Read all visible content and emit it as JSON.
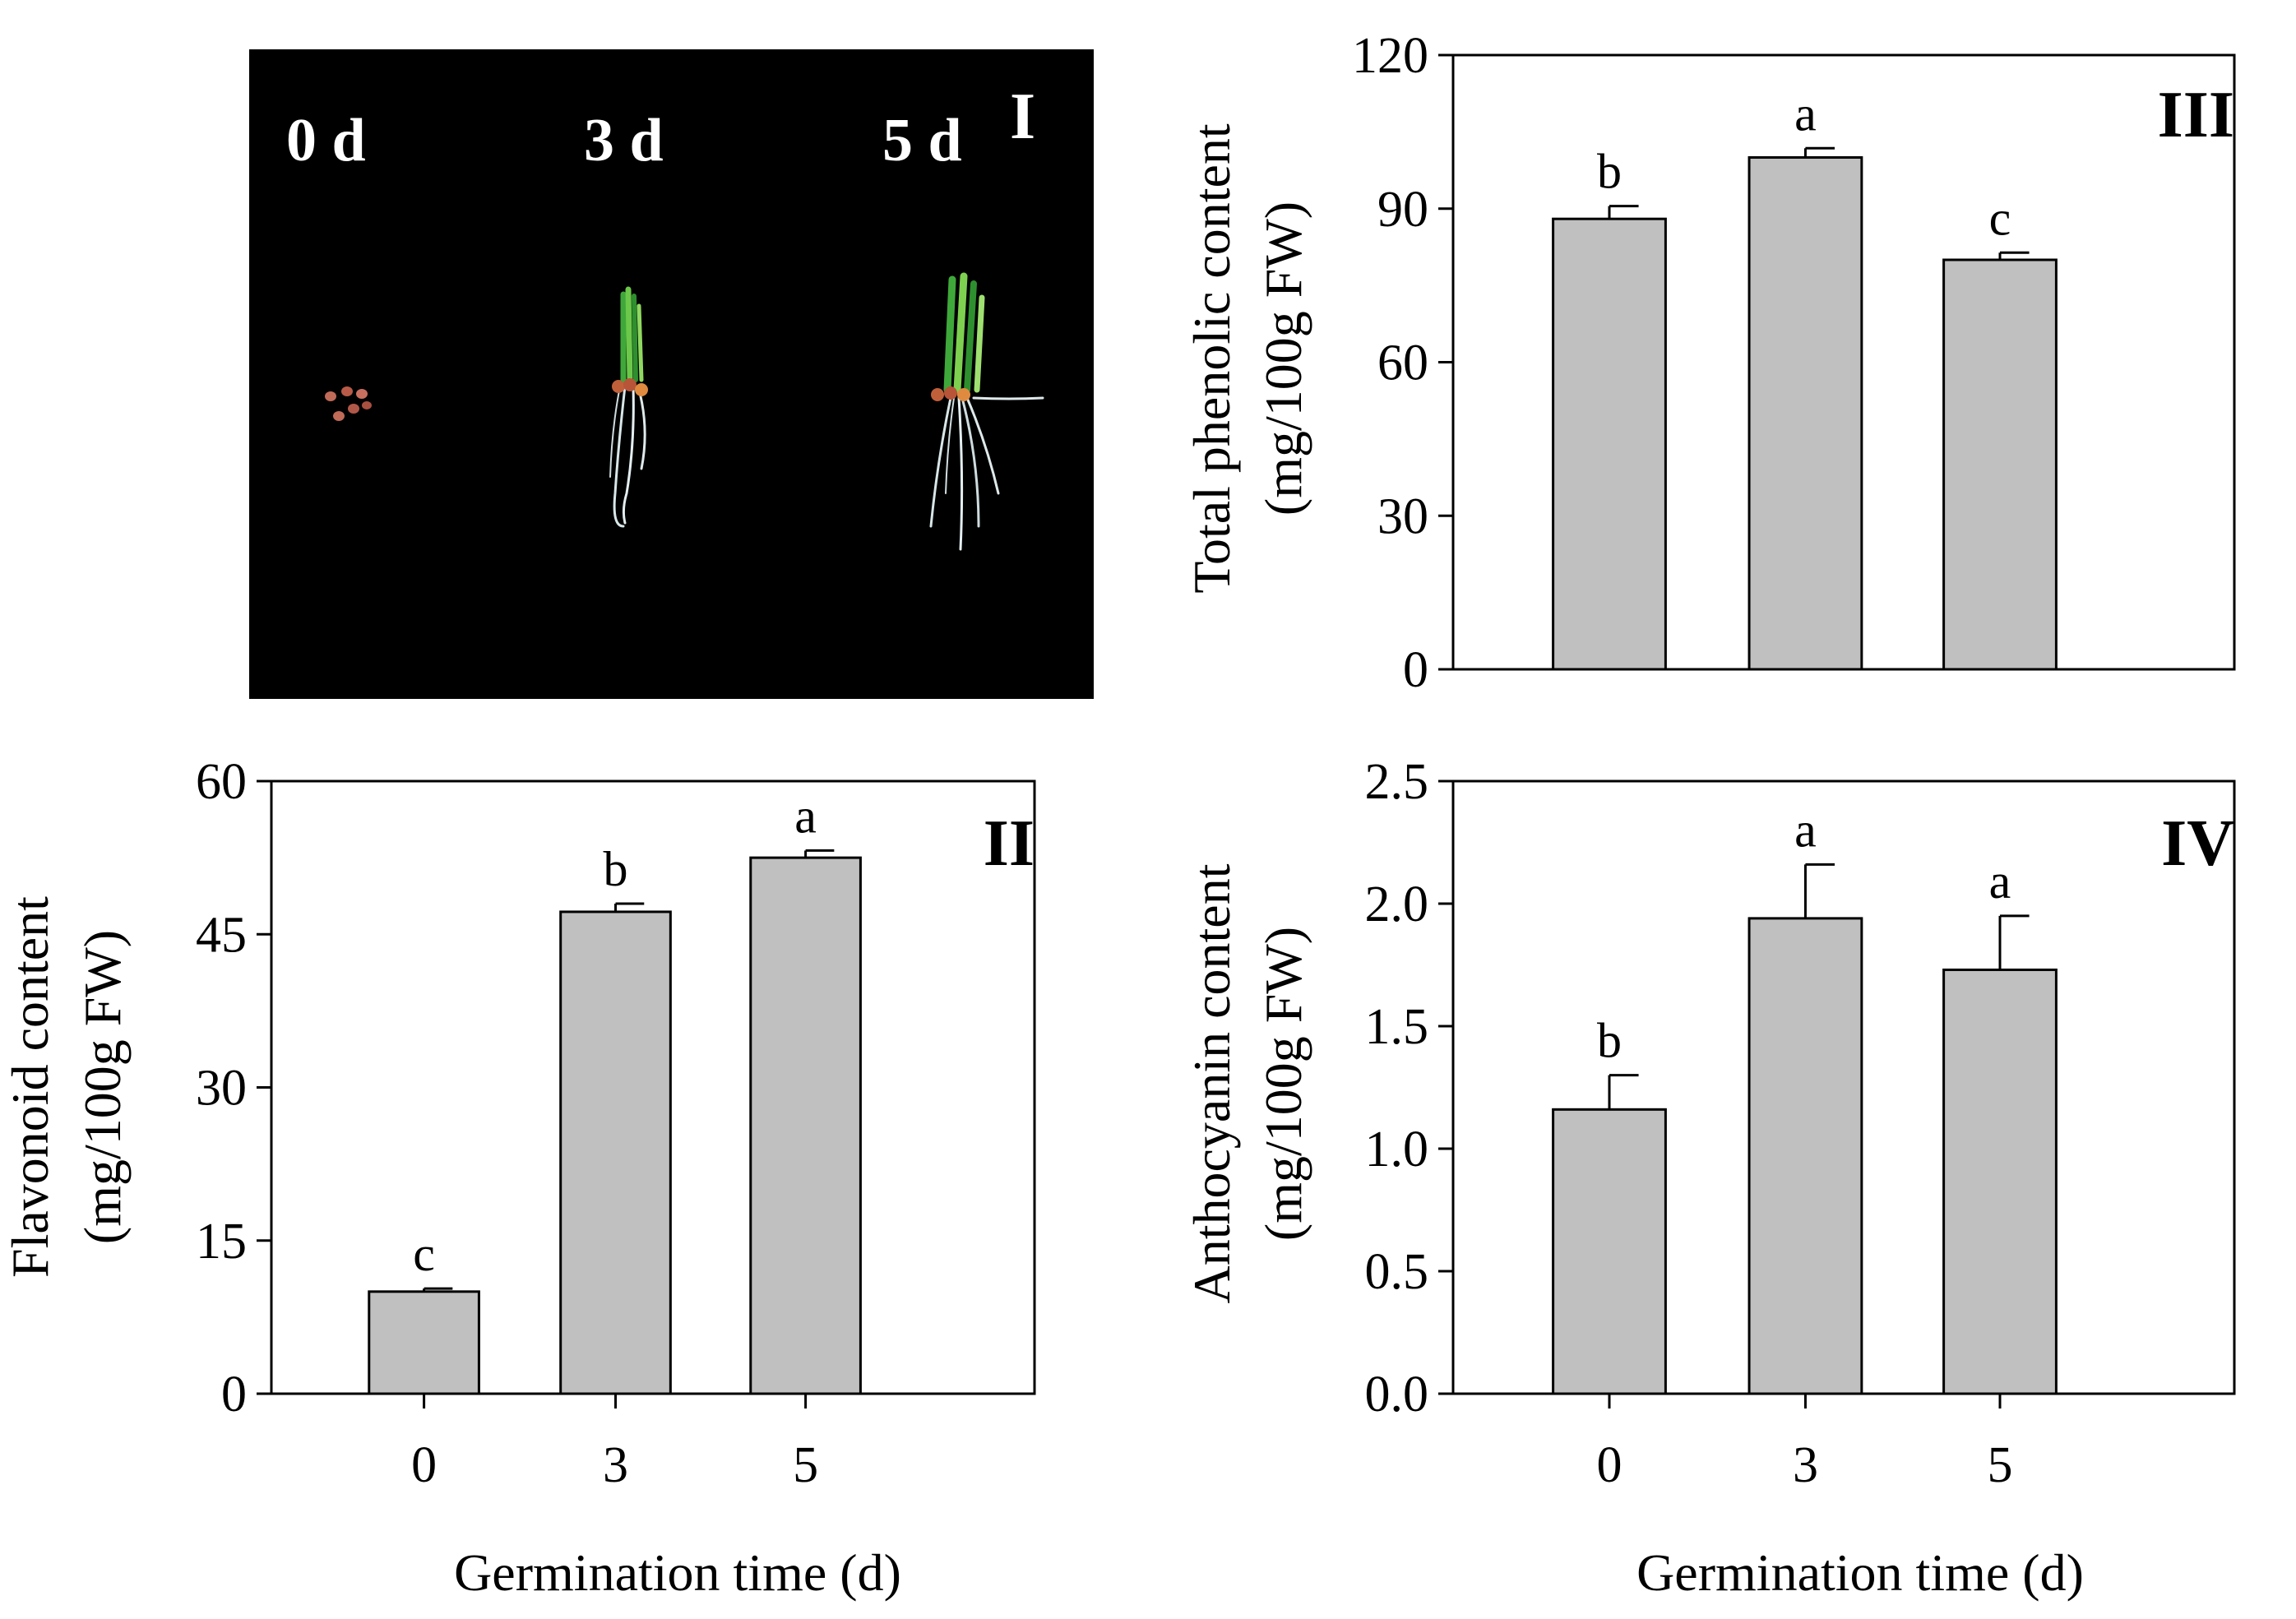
{
  "figure": {
    "photo_panel": {
      "panel_label": "I",
      "stage_labels": [
        "0 d",
        "3 d",
        "5 d"
      ],
      "background": "#000000"
    },
    "colors": {
      "bar_fill": "#c0c0c0",
      "bar_stroke": "#000000",
      "accent_text": "#8b1a1a",
      "photo_text": "#ffffff"
    }
  },
  "chart_data": [
    {
      "panel_id": "II",
      "type": "bar",
      "panel_label": "II",
      "categories": [
        "0",
        "3",
        "5"
      ],
      "values": [
        10.0,
        47.2,
        52.5
      ],
      "errors": [
        0.3,
        0.8,
        0.7
      ],
      "significance": [
        "c",
        "b",
        "a"
      ],
      "ylabel_line1": "Flavonoid content",
      "ylabel_line2": "(mg/100g FW)",
      "xlabel": "Germination time (d)",
      "ylim": [
        0,
        60
      ],
      "yticks": [
        "0",
        "15",
        "30",
        "45",
        "60"
      ],
      "title_color": "#000000"
    },
    {
      "panel_id": "III",
      "type": "bar",
      "panel_label": "III",
      "categories": [
        "0",
        "3",
        "5"
      ],
      "values": [
        88.0,
        100.0,
        80.0
      ],
      "errors": [
        2.5,
        1.8,
        1.4
      ],
      "significance": [
        "b",
        "a",
        "c"
      ],
      "ylabel_line1": "Total phenolic content",
      "ylabel_line2": "(mg/100g FW)",
      "xlabel": "",
      "ylim": [
        0,
        120
      ],
      "yticks": [
        "0",
        "30",
        "60",
        "90",
        "120"
      ],
      "title_color": "#8b1a1a"
    },
    {
      "panel_id": "IV",
      "type": "bar",
      "panel_label": "IV",
      "categories": [
        "0",
        "3",
        "5"
      ],
      "values": [
        1.16,
        1.94,
        1.73
      ],
      "errors": [
        0.14,
        0.22,
        0.22
      ],
      "significance": [
        "b",
        "a",
        "a"
      ],
      "ylabel_line1": "Anthocyanin content",
      "ylabel_line2": "(mg/100g FW)",
      "xlabel": "Germination time (d)",
      "ylim": [
        0,
        2.5
      ],
      "yticks": [
        "0.0",
        "0.5",
        "1.0",
        "1.5",
        "2.0",
        "2.5"
      ],
      "title_color": "#8b1a1a"
    }
  ]
}
